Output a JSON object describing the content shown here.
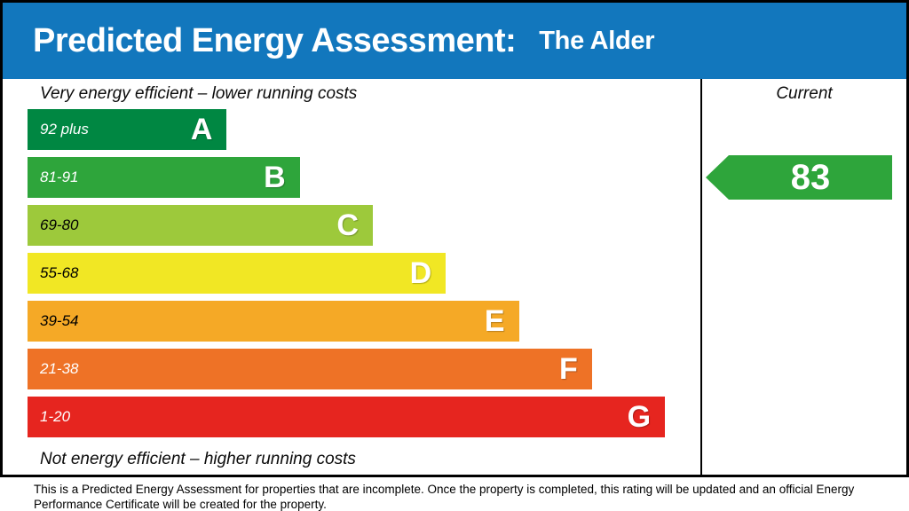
{
  "header": {
    "title": "Predicted Energy Assessment:",
    "property_name": "The Alder",
    "bg_color": "#1277bd"
  },
  "chart_data": {
    "type": "bar",
    "title": "Predicted Energy Assessment",
    "top_label": "Very energy efficient – lower running costs",
    "bottom_label": "Not energy efficient – higher running costs",
    "column_header": "Current",
    "bands": [
      {
        "letter": "A",
        "range": "92 plus",
        "color": "#008742",
        "text_color": "#ffffff",
        "width_pct": 30
      },
      {
        "letter": "B",
        "range": "81-91",
        "color": "#2ea53b",
        "text_color": "#ffffff",
        "width_pct": 41
      },
      {
        "letter": "C",
        "range": "69-80",
        "color": "#9dc93b",
        "text_color": "#000000",
        "width_pct": 52
      },
      {
        "letter": "D",
        "range": "55-68",
        "color": "#f1e724",
        "text_color": "#000000",
        "width_pct": 63
      },
      {
        "letter": "E",
        "range": "39-54",
        "color": "#f5a926",
        "text_color": "#000000",
        "width_pct": 74
      },
      {
        "letter": "F",
        "range": "21-38",
        "color": "#ee7226",
        "text_color": "#ffffff",
        "width_pct": 85
      },
      {
        "letter": "G",
        "range": "1-20",
        "color": "#e6251f",
        "text_color": "#ffffff",
        "width_pct": 96
      }
    ],
    "current": {
      "value": "83",
      "band": "B",
      "color": "#2ea53b"
    },
    "legend_position": "none",
    "grid": false
  },
  "footer": {
    "text": "This is a Predicted Energy Assessment for properties that are incomplete. Once the property is completed, this rating will be updated and an official Energy Performance Certificate will be created for the property."
  }
}
